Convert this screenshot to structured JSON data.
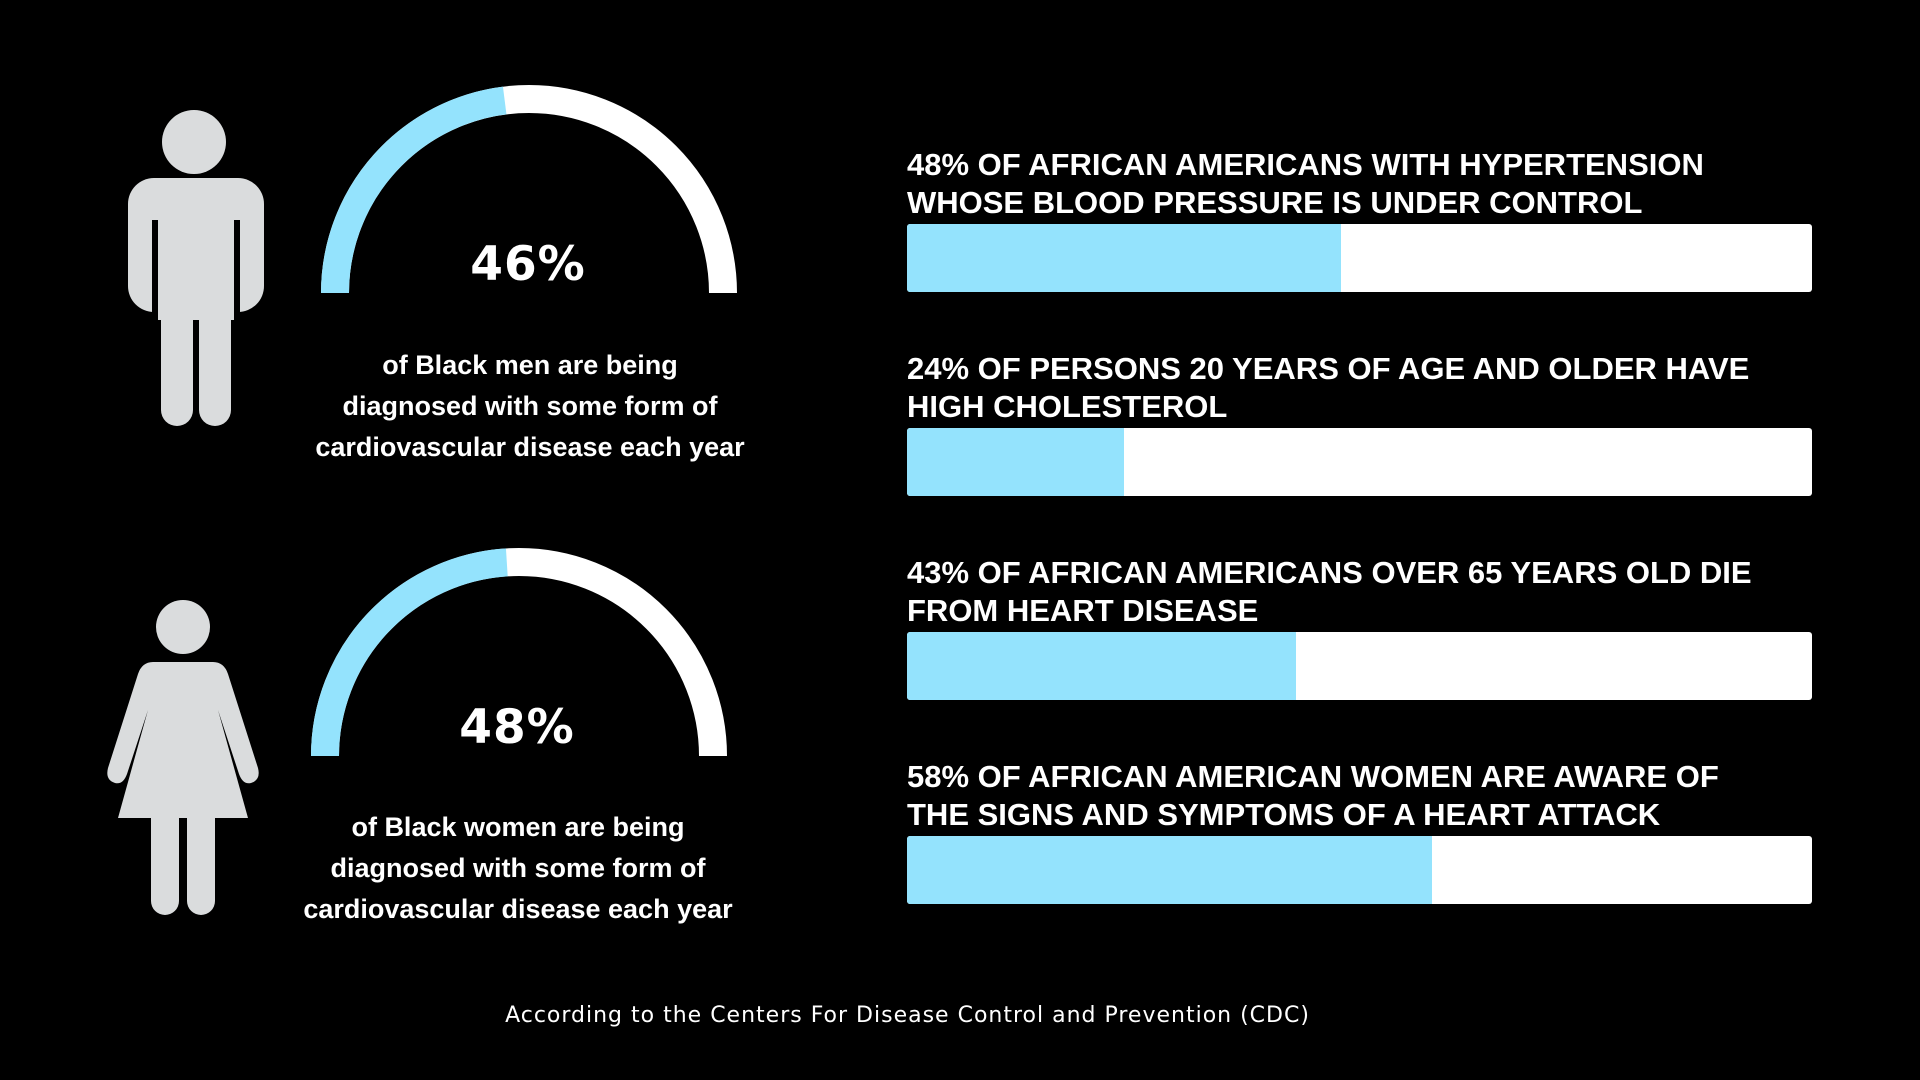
{
  "colors": {
    "background": "#000000",
    "accent": "#94e3fd",
    "track": "#ffffff",
    "icon": "#dadcdd"
  },
  "gauges": [
    {
      "icon": "male-figure-icon",
      "value": 46,
      "value_label": "46%",
      "caption_lines": [
        "of Black men are being",
        "diagnosed with some form of",
        "cardiovascular disease each year"
      ]
    },
    {
      "icon": "female-figure-icon",
      "value": 48,
      "value_label": "48%",
      "caption_lines": [
        "of Black women are being",
        "diagnosed with some form of",
        "cardiovascular disease each year"
      ]
    }
  ],
  "chart_data": {
    "type": "bar",
    "orientation": "horizontal",
    "xlim": [
      0,
      100
    ],
    "categories": [
      "48% of African Americans with hypertension whose blood pressure is under control",
      "24% of persons 20 years of age and older have high cholesterol",
      "43% of African Americans over 65 years old die from heart disease",
      "58% of African American women are aware of the signs and symptoms of a heart attack"
    ],
    "values": [
      48,
      24,
      43,
      58
    ],
    "label_lines": [
      [
        "48% of African Americans with hypertension",
        "whose blood pressure is under control"
      ],
      [
        "24% of persons 20 years of age and older have",
        "high cholesterol"
      ],
      [
        "43% of African Americans over 65 years old die",
        "from heart disease"
      ],
      [
        "58% of African American women are aware of",
        "the signs and symptoms of a heart attack"
      ]
    ]
  },
  "source": "According to the Centers For Disease Control and Prevention (CDC)"
}
